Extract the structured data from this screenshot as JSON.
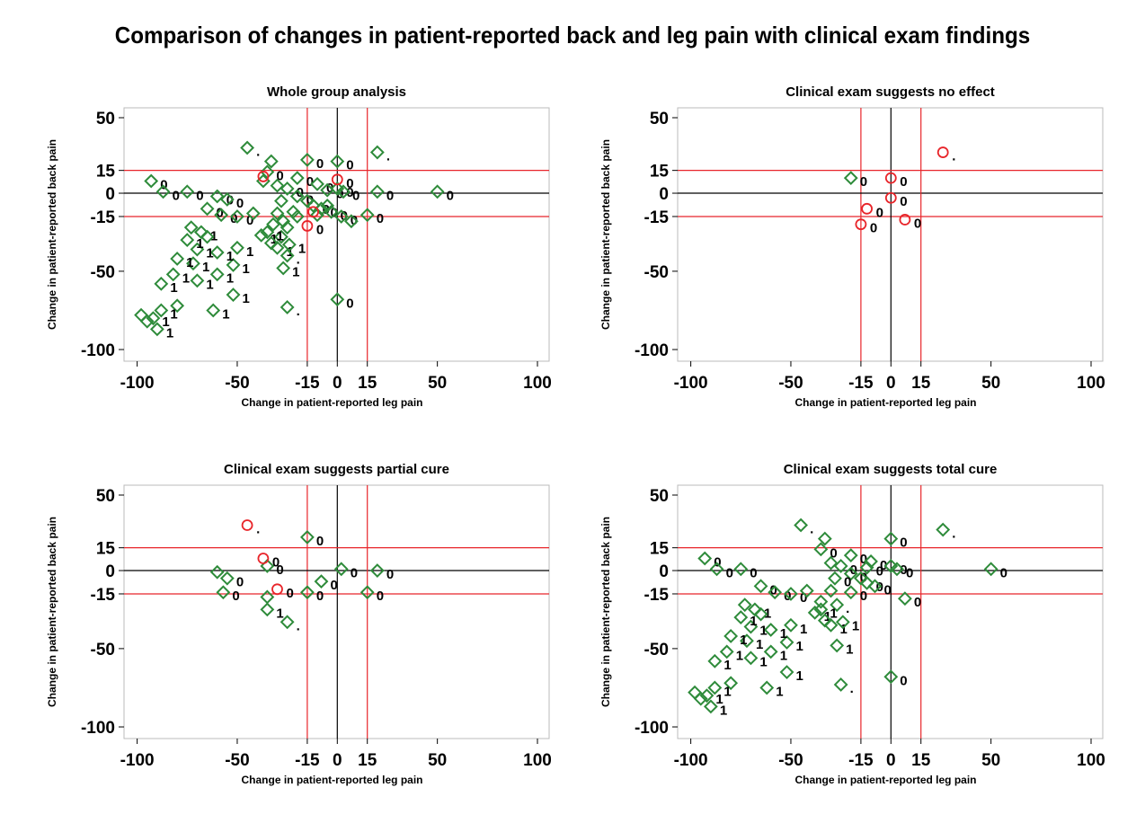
{
  "title": "Comparison of changes in patient-reported back and leg pain with clinical exam findings",
  "colors": {
    "diamond": "#2E8B3A",
    "circle": "#E8252A",
    "ref_line": "#E8252A",
    "zero_line": "#000000",
    "frame": "#BBBBBB"
  },
  "chart_data": [
    {
      "type": "scatter",
      "title": "Whole group analysis",
      "xlabel": "Change in patient-reported leg pain",
      "ylabel": "Change in patient-reported back pain",
      "xticks": [
        "-100",
        "-50",
        "-15",
        "0",
        "15",
        "50",
        "100"
      ],
      "yticks": [
        "50",
        "15",
        "0",
        "-15",
        "-50",
        "-100"
      ],
      "ref_lines": [
        -15,
        0,
        15
      ],
      "series": [
        {
          "marker": "diamond",
          "points": [
            [
              -45,
              30,
              "."
            ],
            [
              20,
              27,
              "."
            ],
            [
              -33,
              21,
              ""
            ],
            [
              -15,
              22,
              "0"
            ],
            [
              0,
              21,
              "0"
            ],
            [
              -35,
              14,
              "0"
            ],
            [
              -37,
              8,
              ""
            ],
            [
              -30,
              5,
              ""
            ],
            [
              -20,
              10,
              "0"
            ],
            [
              -10,
              6,
              "0"
            ],
            [
              -5,
              2,
              "0"
            ],
            [
              0,
              3,
              "0"
            ],
            [
              3,
              1,
              "0"
            ],
            [
              -93,
              8,
              "0"
            ],
            [
              -87,
              1,
              "0"
            ],
            [
              -75,
              1,
              "0"
            ],
            [
              -60,
              -2,
              "0"
            ],
            [
              -55,
              -4,
              "0"
            ],
            [
              -25,
              3,
              "0"
            ],
            [
              -20,
              -2,
              "0"
            ],
            [
              -15,
              -5,
              ""
            ],
            [
              -12,
              -8,
              "0"
            ],
            [
              -8,
              -10,
              "0"
            ],
            [
              -3,
              -12,
              "0"
            ],
            [
              2,
              -15,
              "0"
            ],
            [
              7,
              -18,
              ""
            ],
            [
              15,
              -14,
              "0"
            ],
            [
              20,
              1,
              "0"
            ],
            [
              50,
              1,
              "0"
            ],
            [
              -65,
              -10,
              "0"
            ],
            [
              -58,
              -14,
              "0"
            ],
            [
              -50,
              -15,
              "0"
            ],
            [
              -42,
              -13,
              ""
            ],
            [
              -30,
              -13,
              ""
            ],
            [
              -27,
              -18,
              ""
            ],
            [
              -25,
              -22,
              ""
            ],
            [
              -28,
              -28,
              ""
            ],
            [
              -35,
              -25,
              "1"
            ],
            [
              -38,
              -27,
              "1"
            ],
            [
              -33,
              -32,
              ""
            ],
            [
              -30,
              -35,
              "1"
            ],
            [
              -32,
              -20,
              ""
            ],
            [
              -24,
              -33,
              "1"
            ],
            [
              -25,
              -40,
              "."
            ],
            [
              -27,
              -48,
              "1"
            ],
            [
              -50,
              -35,
              "1"
            ],
            [
              -52,
              -46,
              "1"
            ],
            [
              -60,
              -38,
              "1"
            ],
            [
              -70,
              -36,
              "1"
            ],
            [
              -72,
              -45,
              "1"
            ],
            [
              -75,
              -30,
              "1"
            ],
            [
              -80,
              -42,
              "1"
            ],
            [
              -82,
              -52,
              "1"
            ],
            [
              -88,
              -58,
              "1"
            ],
            [
              -68,
              -25,
              "1"
            ],
            [
              -73,
              -22,
              ""
            ],
            [
              -65,
              -28,
              ""
            ],
            [
              -60,
              -52,
              "1"
            ],
            [
              -70,
              -56,
              "1"
            ],
            [
              -52,
              -65,
              "1"
            ],
            [
              -62,
              -75,
              "1"
            ],
            [
              -80,
              -72,
              ""
            ],
            [
              -88,
              -75,
              "1"
            ],
            [
              -92,
              -80,
              "1"
            ],
            [
              -98,
              -78,
              ""
            ],
            [
              -95,
              -82,
              ""
            ],
            [
              -90,
              -87,
              "1"
            ],
            [
              -25,
              -73,
              "."
            ],
            [
              0,
              -68,
              "0"
            ],
            [
              -20,
              -15,
              ""
            ],
            [
              -10,
              -14,
              ""
            ],
            [
              -5,
              -8,
              ""
            ],
            [
              -28,
              -5,
              ""
            ],
            [
              -22,
              -12,
              ""
            ]
          ]
        },
        {
          "marker": "circle",
          "points": [
            [
              -37,
              11,
              ""
            ],
            [
              0,
              9,
              "0"
            ],
            [
              -15,
              -21,
              "0"
            ],
            [
              -12,
              -12,
              ""
            ]
          ]
        }
      ]
    },
    {
      "type": "scatter",
      "title": "Clinical exam suggests no effect",
      "xlabel": "Change in patient-reported leg pain",
      "ylabel": "Change in patient-reported back pain",
      "xticks": [
        "-100",
        "-50",
        "-15",
        "0",
        "15",
        "50",
        "100"
      ],
      "yticks": [
        "50",
        "15",
        "0",
        "-15",
        "-50",
        "-100"
      ],
      "ref_lines": [
        -15,
        0,
        15
      ],
      "series": [
        {
          "marker": "diamond",
          "points": [
            [
              -20,
              10,
              "0"
            ]
          ]
        },
        {
          "marker": "circle",
          "points": [
            [
              26,
              27,
              "."
            ],
            [
              0,
              10,
              "0"
            ],
            [
              0,
              -3,
              "0"
            ],
            [
              -12,
              -10,
              "0"
            ],
            [
              -15,
              -20,
              "0"
            ],
            [
              7,
              -17,
              "0"
            ]
          ]
        }
      ]
    },
    {
      "type": "scatter",
      "title": "Clinical exam suggests partial cure",
      "xlabel": "Change in patient-reported leg pain",
      "ylabel": "Change in patient-reported back pain",
      "xticks": [
        "-100",
        "-50",
        "-15",
        "0",
        "15",
        "50",
        "100"
      ],
      "yticks": [
        "50",
        "15",
        "0",
        "-15",
        "-50",
        "-100"
      ],
      "ref_lines": [
        -15,
        0,
        15
      ],
      "series": [
        {
          "marker": "diamond",
          "points": [
            [
              -15,
              22,
              "0"
            ],
            [
              -35,
              3,
              "0"
            ],
            [
              2,
              1,
              "0"
            ],
            [
              20,
              0,
              "0"
            ],
            [
              -60,
              -1,
              ""
            ],
            [
              -55,
              -5,
              "0"
            ],
            [
              -57,
              -14,
              "0"
            ],
            [
              -8,
              -7,
              "0"
            ],
            [
              -15,
              -14,
              "0"
            ],
            [
              15,
              -14,
              "0"
            ],
            [
              -35,
              -17,
              ""
            ],
            [
              -35,
              -25,
              "1"
            ],
            [
              -25,
              -33,
              "."
            ]
          ]
        },
        {
          "marker": "circle",
          "points": [
            [
              -45,
              30,
              "."
            ],
            [
              -37,
              8,
              "0"
            ],
            [
              -30,
              -12,
              "0"
            ]
          ]
        }
      ]
    },
    {
      "type": "scatter",
      "title": "Clinical exam suggests total cure",
      "xlabel": "Change in patient-reported leg pain",
      "ylabel": "Change in patient-reported back pain",
      "xticks": [
        "-100",
        "-50",
        "-15",
        "0",
        "15",
        "50",
        "100"
      ],
      "yticks": [
        "50",
        "15",
        "0",
        "-15",
        "-50",
        "-100"
      ],
      "ref_lines": [
        -15,
        0,
        15
      ],
      "series": [
        {
          "marker": "diamond",
          "points": [
            [
              -45,
              30,
              "."
            ],
            [
              26,
              27,
              "."
            ],
            [
              -33,
              21,
              ""
            ],
            [
              0,
              21,
              "0"
            ],
            [
              -35,
              14,
              "0"
            ],
            [
              -30,
              5,
              ""
            ],
            [
              -20,
              10,
              "0"
            ],
            [
              -10,
              6,
              "0"
            ],
            [
              -12,
              2,
              "0"
            ],
            [
              0,
              3,
              "0"
            ],
            [
              3,
              1,
              "0"
            ],
            [
              -93,
              8,
              "0"
            ],
            [
              -87,
              1,
              "0"
            ],
            [
              -75,
              1,
              "0"
            ],
            [
              -25,
              3,
              "0"
            ],
            [
              -20,
              -2,
              "0"
            ],
            [
              -15,
              -5,
              ""
            ],
            [
              -12,
              -8,
              "0"
            ],
            [
              -8,
              -10,
              "0"
            ],
            [
              -28,
              -5,
              "0"
            ],
            [
              -20,
              -14,
              "0"
            ],
            [
              7,
              -18,
              "0"
            ],
            [
              -65,
              -10,
              "0"
            ],
            [
              -58,
              -14,
              "0"
            ],
            [
              -50,
              -15,
              "0"
            ],
            [
              -42,
              -13,
              ""
            ],
            [
              -30,
              -13,
              ""
            ],
            [
              -35,
              -20,
              ""
            ],
            [
              -27,
              -22,
              "."
            ],
            [
              -35,
              -25,
              "1"
            ],
            [
              -38,
              -27,
              "1"
            ],
            [
              -33,
              -32,
              ""
            ],
            [
              -30,
              -35,
              "1"
            ],
            [
              -24,
              -33,
              "1"
            ],
            [
              -27,
              -48,
              "1"
            ],
            [
              -50,
              -35,
              "1"
            ],
            [
              -52,
              -46,
              "1"
            ],
            [
              -60,
              -38,
              "1"
            ],
            [
              -70,
              -36,
              "1"
            ],
            [
              -72,
              -45,
              "1"
            ],
            [
              -75,
              -30,
              "1"
            ],
            [
              -80,
              -42,
              "1"
            ],
            [
              -82,
              -52,
              "1"
            ],
            [
              -88,
              -58,
              "1"
            ],
            [
              -68,
              -25,
              "1"
            ],
            [
              -73,
              -22,
              ""
            ],
            [
              -65,
              -28,
              ""
            ],
            [
              -60,
              -52,
              "1"
            ],
            [
              -70,
              -56,
              "1"
            ],
            [
              -52,
              -65,
              "1"
            ],
            [
              -62,
              -75,
              "1"
            ],
            [
              -80,
              -72,
              ""
            ],
            [
              -88,
              -75,
              "1"
            ],
            [
              -92,
              -80,
              "1"
            ],
            [
              -98,
              -78,
              ""
            ],
            [
              -95,
              -82,
              ""
            ],
            [
              -90,
              -87,
              "1"
            ],
            [
              -25,
              -73,
              "."
            ],
            [
              0,
              -68,
              "0"
            ],
            [
              50,
              1,
              "0"
            ]
          ]
        },
        {
          "marker": "circle",
          "points": []
        }
      ]
    }
  ]
}
